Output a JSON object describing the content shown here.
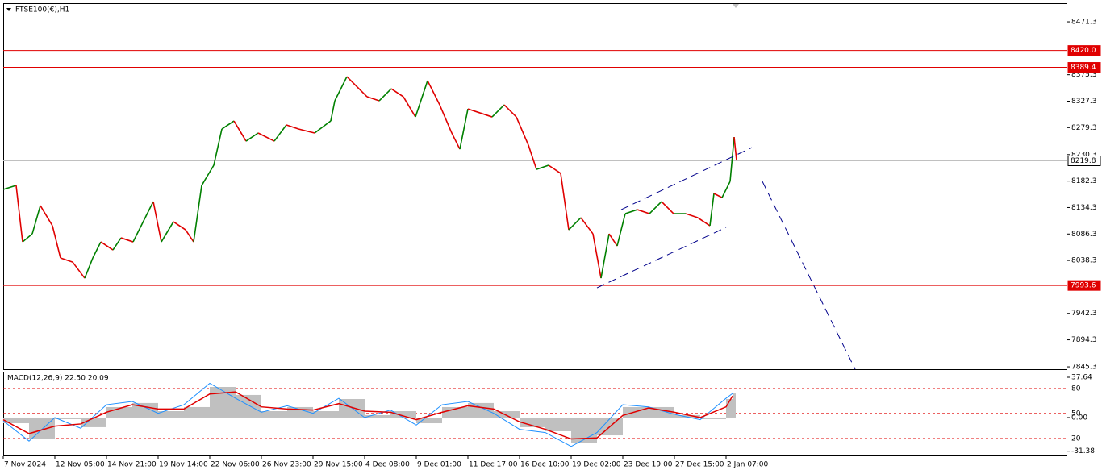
{
  "chart_data": [
    {
      "type": "line",
      "title": "FTSE100(€),H1",
      "up_color": "#008000",
      "down_color": "#e00000",
      "x": [
        0,
        4,
        6,
        9,
        11.5,
        15.25,
        17.75,
        21.5,
        25.25,
        27.75,
        30.25,
        34,
        36.5,
        40.25,
        44,
        46.5,
        49,
        52.75,
        56.5,
        59,
        61.5,
        65.25,
        67.75,
        71.5,
        75.25,
        79,
        84,
        87.75,
        91.5,
        96.5,
        101.5,
        102.75,
        106.5,
        109,
        112.75,
        116.5,
        120.25,
        124,
        127.75,
        131.5,
        135.25,
        139,
        141.5,
        144,
        147.75,
        151.5,
        155.25,
        159,
        162.75,
        165.25,
        169,
        172.75,
        175.25,
        179,
        182.75,
        185.25,
        187.75,
        190.25,
        192.75,
        196.5,
        200.25,
        204,
        207.75,
        211.5,
        215.25,
        219,
        220.25,
        222.75,
        225.25,
        226.5,
        227.25
      ],
      "values": [
        8167.1,
        8174.4,
        8072.0,
        8086.6,
        8137.8,
        8101.3,
        8042.8,
        8035.4,
        8006.2,
        8042.8,
        8072.0,
        8057.4,
        8079.3,
        8072.0,
        8115.9,
        8145.1,
        8072.0,
        8108.6,
        8093.9,
        8072.0,
        8174.4,
        8211.0,
        8276.8,
        8291.4,
        8254.8,
        8269.5,
        8254.8,
        8284.1,
        8276.8,
        8269.5,
        8291.4,
        8328.0,
        8371.8,
        8357.2,
        8335.3,
        8328.0,
        8349.9,
        8335.3,
        8298.7,
        8364.5,
        8320.7,
        8269.5,
        8240.2,
        8313.3,
        8306.0,
        8298.7,
        8320.7,
        8298.7,
        8247.5,
        8203.6,
        8211.0,
        8196.3,
        8093.9,
        8115.9,
        8086.6,
        8006.2,
        8086.6,
        8064.7,
        8123.2,
        8130.5,
        8123.2,
        8145.1,
        8123.2,
        8123.2,
        8115.9,
        8101.3,
        8159.8,
        8152.4,
        8181.7,
        8262.1,
        8219.8
      ],
      "xlim": [
        0,
        329.5
      ],
      "ylim": [
        7841,
        8505
      ],
      "yticks": [
        8471.3,
        8375.3,
        8327.3,
        8279.3,
        8230.3,
        8182.3,
        8134.3,
        8086.3,
        8038.3,
        7942.3,
        7894.3,
        7845.3
      ],
      "xticks": [
        {
          "value": 0,
          "label": "7 Nov 2024"
        },
        {
          "value": 16,
          "label": "12 Nov 05:00"
        },
        {
          "value": 32,
          "label": "14 Nov 21:00"
        },
        {
          "value": 48,
          "label": "19 Nov 14:00"
        },
        {
          "value": 64,
          "label": "22 Nov 06:00"
        },
        {
          "value": 80,
          "label": "26 Nov 23:00"
        },
        {
          "value": 96,
          "label": "29 Nov 15:00"
        },
        {
          "value": 112,
          "label": "4 Dec 08:00"
        },
        {
          "value": 128,
          "label": "9 Dec 01:00"
        },
        {
          "value": 144,
          "label": "11 Dec 17:00"
        },
        {
          "value": 160,
          "label": "16 Dec 10:00"
        },
        {
          "value": 176,
          "label": "19 Dec 02:00"
        },
        {
          "value": 192,
          "label": "23 Dec 19:00"
        },
        {
          "value": 208,
          "label": "27 Dec 15:00"
        },
        {
          "value": 224,
          "label": "2 Jan 07:00"
        }
      ],
      "levels": [
        {
          "value": 8420.0,
          "label": "8420.0",
          "color": "#e00000"
        },
        {
          "value": 8389.4,
          "label": "8389.4",
          "color": "#e00000"
        },
        {
          "value": 7993.6,
          "label": "7993.6",
          "color": "#e00000"
        },
        {
          "value": 8219.8,
          "label": "8219.8",
          "color": "#c0c0c0"
        }
      ],
      "trendline_color": "#00008b",
      "trendlines": [
        {
          "x": [
            191.5,
            232
          ],
          "y": [
            8130.5,
            8243.1
          ]
        },
        {
          "x": [
            184,
            224
          ],
          "y": [
            7988.6,
            8098.3
          ]
        },
        {
          "x": [
            235.25,
            264
          ],
          "y": [
            8181.7,
            7841
          ]
        }
      ]
    },
    {
      "type": "macd",
      "title": "MACD(12,26,9) 22.50 20.09",
      "xlim": [
        0,
        329.5
      ],
      "ylim": [
        -35.4,
        42.9
      ],
      "yticks": [
        37.64,
        {
          "value": 0,
          "label": "0.00"
        },
        -31.38
      ],
      "levels": [
        {
          "value": 27.1,
          "label": "80"
        },
        {
          "value": 3.8,
          "label": "50"
        },
        {
          "value": -19.6,
          "label": "20"
        }
      ],
      "x": [
        0,
        8,
        16,
        24,
        32,
        40,
        48,
        56,
        64,
        72,
        80,
        88,
        96,
        104,
        112,
        120,
        128,
        136,
        144,
        152,
        160,
        168,
        176,
        184,
        192,
        200,
        208,
        216,
        224,
        226
      ],
      "histogram": {
        "color": "#c0c0c0",
        "values": [
          -5.3,
          -20.3,
          -1.5,
          -9.0,
          9.8,
          13.6,
          6.0,
          9.8,
          28.6,
          21.1,
          6.0,
          9.8,
          6.0,
          17.3,
          2.3,
          6.0,
          -5.3,
          9.8,
          13.6,
          6.0,
          -9.0,
          -12.8,
          -24.1,
          -16.6,
          9.8,
          9.8,
          2.3,
          -1.5,
          17.3,
          22.5
        ]
      },
      "signal": {
        "color": "#e00000",
        "values": [
          -2,
          -15,
          -8,
          -6,
          5,
          12,
          8,
          8,
          22,
          24,
          10,
          8,
          7,
          13,
          6,
          5,
          -2,
          5,
          11,
          8,
          -4,
          -11,
          -20,
          -19,
          2,
          9,
          5,
          0,
          10,
          20.09
        ]
      },
      "main": {
        "color": "#1e90ff",
        "values": [
          -3,
          -22,
          0,
          -10,
          12,
          15,
          4,
          12,
          32,
          18,
          5,
          11,
          4,
          18,
          0,
          7,
          -7,
          12,
          15,
          4,
          -11,
          -14,
          -27,
          -14,
          12,
          10,
          3,
          -2,
          18,
          22.5
        ]
      }
    }
  ]
}
